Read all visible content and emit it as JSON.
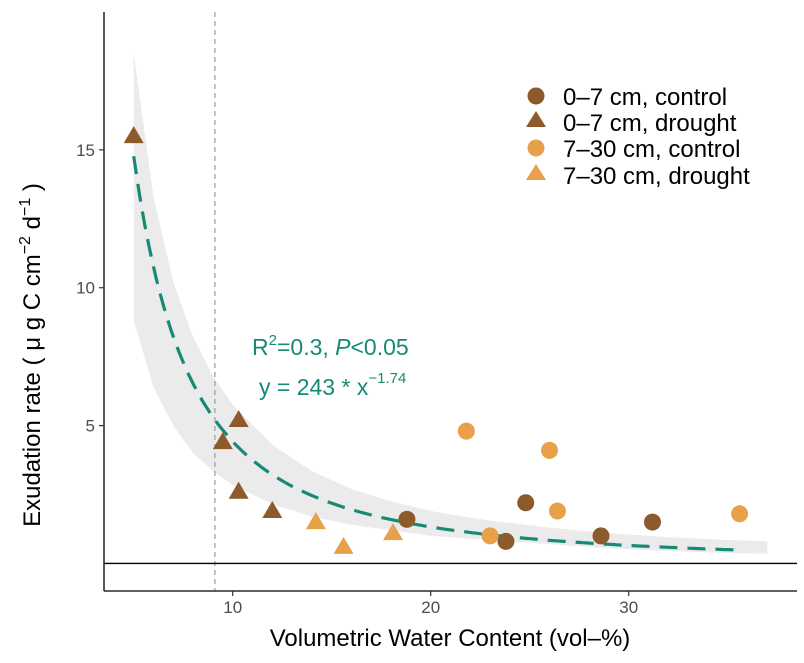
{
  "chart_data": {
    "type": "scatter",
    "xlabel": "Volumetric Water Content (vol–%)",
    "ylabel": {
      "prefix": "Exudation rate ( ",
      "mu": "μ",
      "main": " g C  cm",
      "exp1": "−2",
      "mid": "  d",
      "exp2": "−1",
      "suffix": " )"
    },
    "xlim": [
      3.5,
      38.5
    ],
    "ylim": [
      -1.0,
      20.0
    ],
    "x_ticks": [
      10,
      20,
      30
    ],
    "x_tick_labels": [
      "10",
      "20",
      "30"
    ],
    "y_ticks": [
      5,
      10,
      15
    ],
    "y_tick_labels": [
      "5",
      "10",
      "15"
    ],
    "grid": false,
    "zero_line": 0,
    "vline": {
      "x": 9.1,
      "style": "dashed",
      "color": "#a6a6a6"
    },
    "colors": {
      "shallow": "#8c5a2b",
      "deep": "#e9a04a",
      "fit": "#168a76",
      "band": "#ebebeb"
    },
    "series": [
      {
        "name": "0–7 cm, control",
        "marker": "circle",
        "color_key": "shallow",
        "points": [
          [
            18.8,
            1.6
          ],
          [
            23.8,
            0.8
          ],
          [
            24.8,
            2.2
          ],
          [
            28.6,
            1.0
          ],
          [
            31.2,
            1.5
          ]
        ]
      },
      {
        "name": "0–7 cm, drought",
        "marker": "triangle",
        "color_key": "shallow",
        "points": [
          [
            5.0,
            15.5
          ],
          [
            9.5,
            4.4
          ],
          [
            10.3,
            5.2
          ],
          [
            10.3,
            2.6
          ],
          [
            12.0,
            1.9
          ]
        ]
      },
      {
        "name": "7–30 cm, control",
        "marker": "circle",
        "color_key": "deep",
        "points": [
          [
            21.8,
            4.8
          ],
          [
            23.0,
            1.0
          ],
          [
            26.0,
            4.1
          ],
          [
            26.4,
            1.9
          ],
          [
            35.6,
            1.8
          ]
        ]
      },
      {
        "name": "7–30 cm, drought",
        "marker": "triangle",
        "color_key": "deep",
        "points": [
          [
            14.2,
            1.5
          ],
          [
            15.6,
            0.6
          ],
          [
            18.1,
            1.1
          ]
        ]
      }
    ],
    "fit": {
      "a": 243,
      "b": -1.74,
      "x_range": [
        5.0,
        35.5
      ],
      "style": "dashed",
      "ci_band": [
        [
          5.0,
          8.8,
          18.5
        ],
        [
          6.0,
          6.4,
          13.3
        ],
        [
          7.0,
          5.0,
          10.2
        ],
        [
          8.0,
          4.0,
          8.2
        ],
        [
          9.0,
          3.35,
          6.8
        ],
        [
          10.0,
          2.85,
          5.75
        ],
        [
          12.0,
          2.15,
          4.3
        ],
        [
          14.0,
          1.7,
          3.35
        ],
        [
          16.0,
          1.4,
          2.7
        ],
        [
          18.0,
          1.2,
          2.25
        ],
        [
          20.0,
          1.0,
          1.9
        ],
        [
          23.0,
          0.85,
          1.55
        ],
        [
          26.0,
          0.7,
          1.3
        ],
        [
          29.0,
          0.55,
          1.1
        ],
        [
          32.0,
          0.45,
          0.95
        ],
        [
          35.0,
          0.38,
          0.85
        ],
        [
          37.0,
          0.35,
          0.8
        ]
      ]
    },
    "annotations": {
      "r2_prefix": "R",
      "r2_exp": "2",
      "r2_rest": "=0.3, ",
      "p_italic": "P",
      "p_rest": "<0.05",
      "eq_prefix": "y = 243 * x",
      "eq_exp": "−1.74"
    }
  }
}
